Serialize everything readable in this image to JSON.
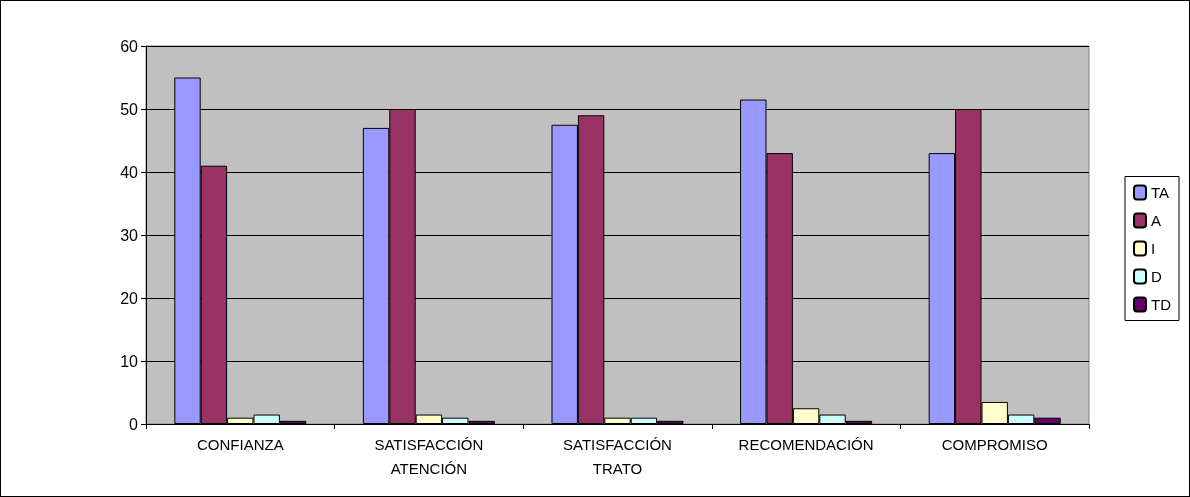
{
  "chart_data": {
    "type": "bar",
    "categories": [
      "CONFIANZA",
      "SATISFACCIÓN\nATENCIÓN",
      "SATISFACCIÓN\nTRATO",
      "RECOMENDACIÓN",
      "COMPROMISO"
    ],
    "series": [
      {
        "name": "TA",
        "color": "#9999ff",
        "values": [
          55,
          47,
          47.5,
          51.5,
          43
        ]
      },
      {
        "name": "A",
        "color": "#993366",
        "values": [
          41,
          50,
          49,
          43,
          50
        ]
      },
      {
        "name": "I",
        "color": "#ffffcc",
        "values": [
          1,
          1.5,
          1,
          2.5,
          3.5
        ]
      },
      {
        "name": "D",
        "color": "#ccffff",
        "values": [
          1.5,
          1,
          1,
          1.5,
          1.5
        ]
      },
      {
        "name": "TD",
        "color": "#660066",
        "values": [
          0.5,
          0.5,
          0.5,
          0.5,
          1
        ]
      }
    ],
    "ylim": [
      0,
      60
    ],
    "yticks": [
      0,
      10,
      20,
      30,
      40,
      50,
      60
    ],
    "grid": "y",
    "legend": "right"
  }
}
